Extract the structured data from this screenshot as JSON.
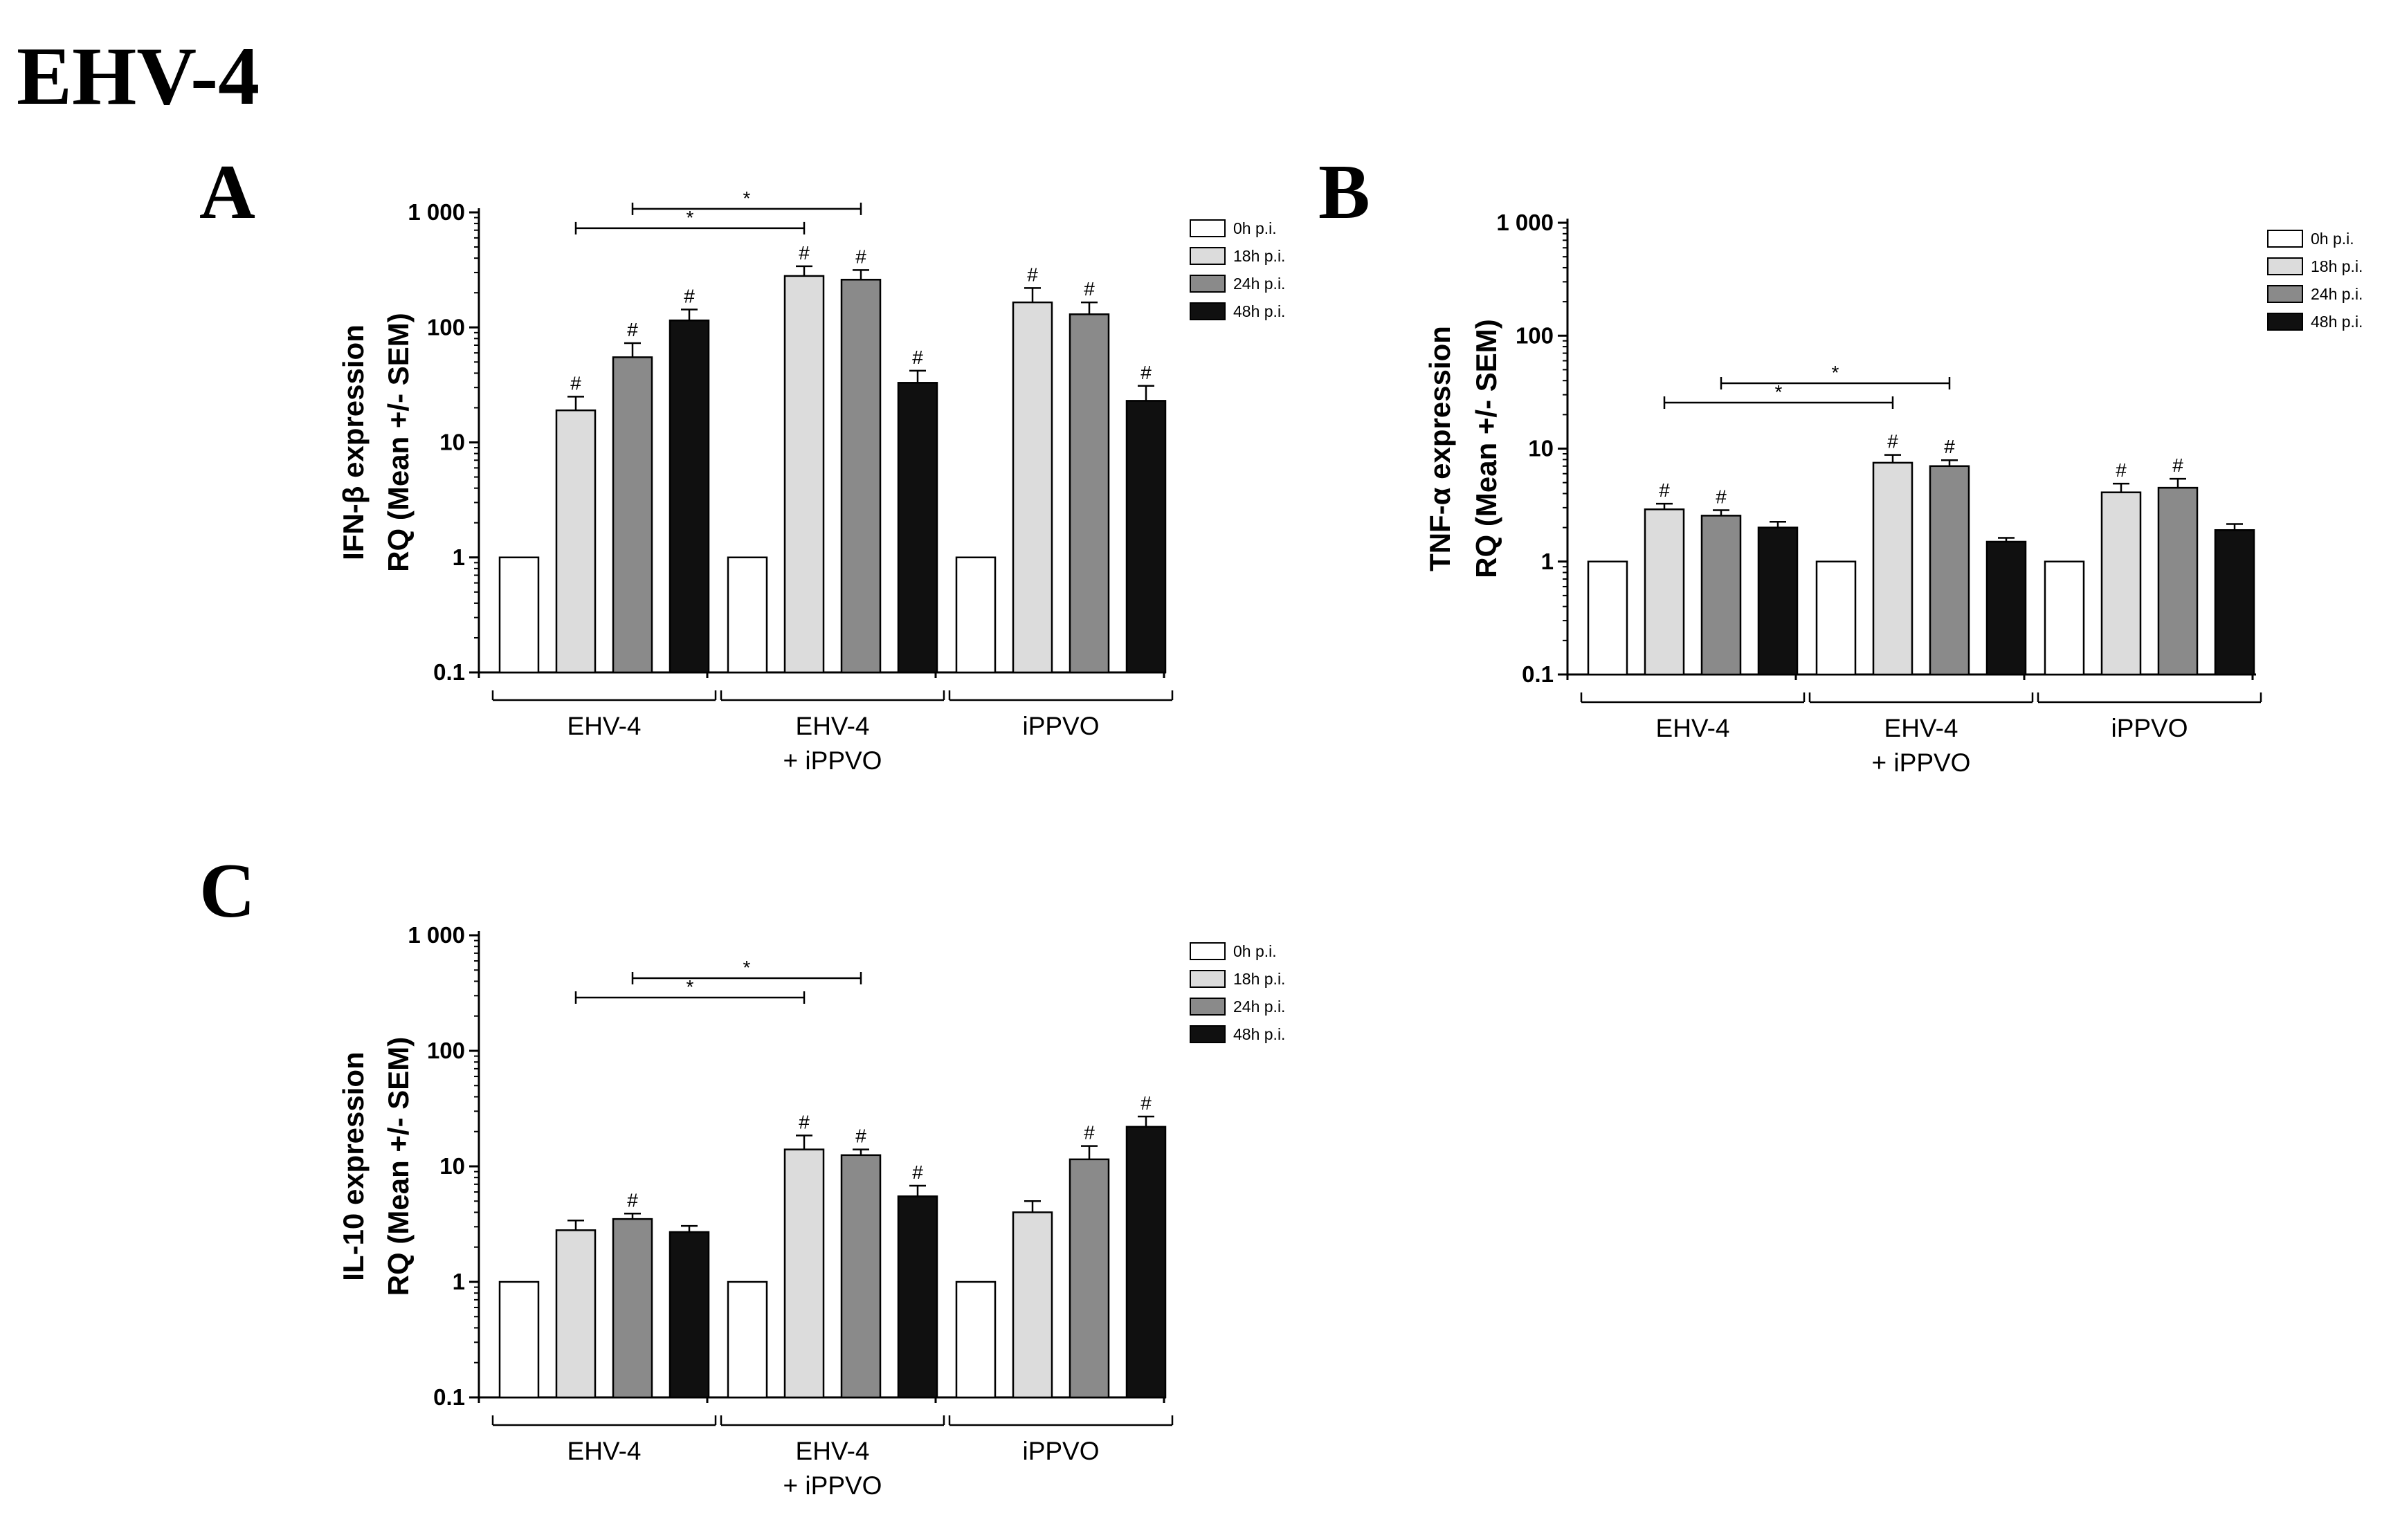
{
  "title": "EHV-4",
  "colors": {
    "0h p.i.": "#ffffff",
    "18h p.i.": "#dcdcdc",
    "24h p.i.": "#8a8a8a",
    "48h p.i.": "#101010"
  },
  "chart_data": [
    {
      "panel": "A",
      "type": "bar",
      "yscale": "log",
      "ylabel": "IFN-β expression\nRQ (Mean +/- SEM)",
      "ylim": [
        0.1,
        1000
      ],
      "yticks": [
        "0.1",
        "1",
        "10",
        "100",
        "1 000"
      ],
      "categories": [
        "EHV-4",
        "EHV-4\n+ iPPVO",
        "iPPVO"
      ],
      "series": [
        {
          "name": "0h p.i.",
          "values": [
            1,
            1,
            1
          ],
          "err": [
            0,
            0,
            0
          ],
          "marks": [
            "",
            "",
            ""
          ]
        },
        {
          "name": "18h p.i.",
          "values": [
            19,
            280,
            165
          ],
          "err": [
            6,
            60,
            55
          ],
          "marks": [
            "#",
            "#",
            "#"
          ]
        },
        {
          "name": "24h p.i.",
          "values": [
            55,
            260,
            130
          ],
          "err": [
            18,
            55,
            35
          ],
          "marks": [
            "#",
            "#",
            "#"
          ]
        },
        {
          "name": "48h p.i.",
          "values": [
            115,
            33,
            23
          ],
          "err": [
            28,
            9,
            8
          ],
          "marks": [
            "#",
            "#",
            "#"
          ]
        }
      ],
      "comparisons": [
        {
          "from": [
            0,
            "18h p.i."
          ],
          "to": [
            1,
            "18h p.i."
          ],
          "label": "*",
          "level": 1
        },
        {
          "from": [
            0,
            "24h p.i."
          ],
          "to": [
            1,
            "24h p.i."
          ],
          "label": "*",
          "level": 2
        }
      ]
    },
    {
      "panel": "B",
      "type": "bar",
      "yscale": "log",
      "ylabel": "TNF-α expression\nRQ (Mean +/- SEM)",
      "ylim": [
        0.1,
        1000
      ],
      "yticks": [
        "0.1",
        "1",
        "10",
        "100",
        "1 000"
      ],
      "categories": [
        "EHV-4",
        "EHV-4\n+ iPPVO",
        "iPPVO"
      ],
      "series": [
        {
          "name": "0h p.i.",
          "values": [
            1,
            1,
            1
          ],
          "err": [
            0,
            0,
            0
          ],
          "marks": [
            "",
            "",
            ""
          ]
        },
        {
          "name": "18h p.i.",
          "values": [
            2.9,
            7.5,
            4.1
          ],
          "err": [
            0.35,
            1.3,
            0.8
          ],
          "marks": [
            "#",
            "#",
            "#"
          ]
        },
        {
          "name": "24h p.i.",
          "values": [
            2.55,
            7.0,
            4.5
          ],
          "err": [
            0.3,
            0.9,
            0.9
          ],
          "marks": [
            "#",
            "#",
            "#"
          ]
        },
        {
          "name": "48h p.i.",
          "values": [
            2.0,
            1.5,
            1.9
          ],
          "err": [
            0.25,
            0.12,
            0.25
          ],
          "marks": [
            "",
            "",
            ""
          ]
        }
      ],
      "comparisons": [
        {
          "from": [
            0,
            "18h p.i."
          ],
          "to": [
            1,
            "18h p.i."
          ],
          "label": "*",
          "level": 1
        },
        {
          "from": [
            0,
            "24h p.i."
          ],
          "to": [
            1,
            "24h p.i."
          ],
          "label": "*",
          "level": 2
        }
      ]
    },
    {
      "panel": "C",
      "type": "bar",
      "yscale": "log",
      "ylabel": "IL-10 expression\nRQ (Mean +/- SEM)",
      "ylim": [
        0.1,
        1000
      ],
      "yticks": [
        "0.1",
        "1",
        "10",
        "100",
        "1 000"
      ],
      "categories": [
        "EHV-4",
        "EHV-4\n+ iPPVO",
        "iPPVO"
      ],
      "series": [
        {
          "name": "0h p.i.",
          "values": [
            1,
            1,
            1
          ],
          "err": [
            0,
            0,
            0
          ],
          "marks": [
            "",
            "",
            ""
          ]
        },
        {
          "name": "18h p.i.",
          "values": [
            2.8,
            14,
            4.0
          ],
          "err": [
            0.6,
            4.5,
            1.0
          ],
          "marks": [
            "",
            "#",
            ""
          ]
        },
        {
          "name": "24h p.i.",
          "values": [
            3.5,
            12.5,
            11.5
          ],
          "err": [
            0.4,
            1.5,
            3.5
          ],
          "marks": [
            "#",
            "#",
            "#"
          ]
        },
        {
          "name": "48h p.i.",
          "values": [
            2.7,
            5.5,
            22
          ],
          "err": [
            0.35,
            1.3,
            5
          ],
          "marks": [
            "",
            "#",
            "#"
          ]
        }
      ],
      "comparisons": [
        {
          "from": [
            0,
            "18h p.i."
          ],
          "to": [
            1,
            "18h p.i."
          ],
          "label": "*",
          "level": 1
        },
        {
          "from": [
            0,
            "24h p.i."
          ],
          "to": [
            1,
            "24h p.i."
          ],
          "label": "*",
          "level": 2
        }
      ]
    }
  ]
}
